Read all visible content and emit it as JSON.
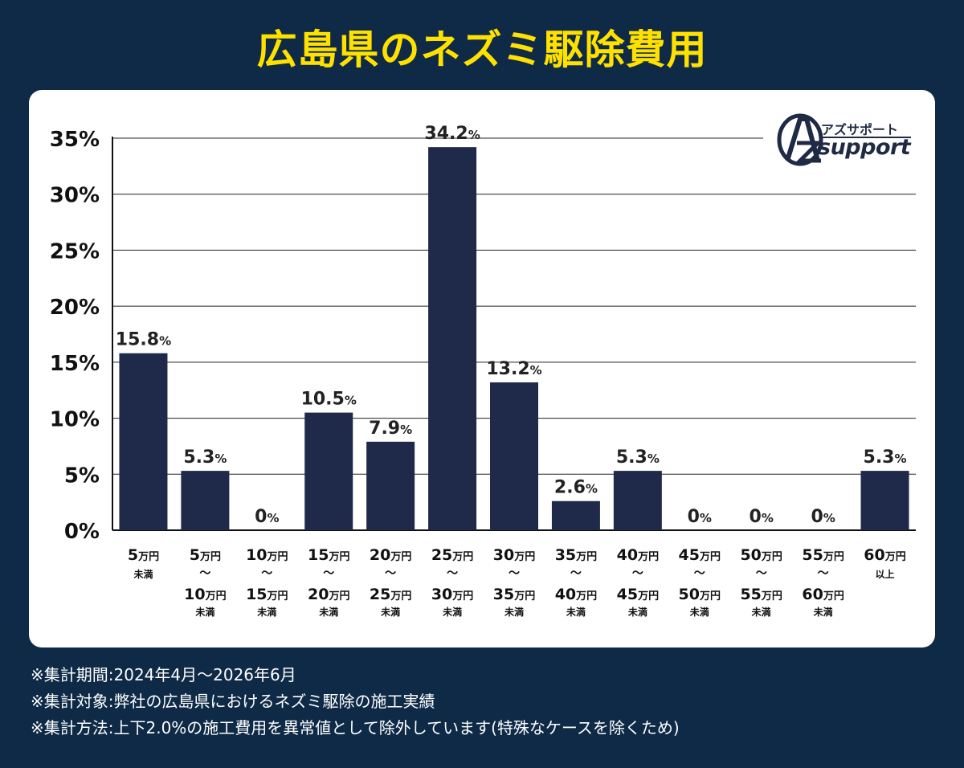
{
  "title": "広島県のネズミ駆除費用",
  "logo": {
    "kana": "アズサポート",
    "word": "support"
  },
  "notes": [
    "※集計期間:2024年4月〜2026年6月",
    "※集計対象:弊社の広島県におけるネズミ駆除の施工実績",
    "※集計方法:上下2.0%の施工費用を異常値として除外しています(特殊なケースを除くため)"
  ],
  "colors": {
    "background": "#0e2a47",
    "title": "#ffe100",
    "bar": "#1f2a4a",
    "grid": "#222222"
  },
  "chart_data": {
    "type": "bar",
    "title": "広島県のネズミ駆除費用",
    "xlabel": "",
    "ylabel": "",
    "ylim": [
      0,
      35
    ],
    "yticks": [
      "0%",
      "5%",
      "10%",
      "15%",
      "20%",
      "25%",
      "30%",
      "35%"
    ],
    "grid": true,
    "unit": "万円",
    "categories": [
      {
        "top": "5",
        "mid": "",
        "bottom": "",
        "suffix": "未満"
      },
      {
        "top": "5",
        "mid": "〜",
        "bottom": "10",
        "suffix": "未満"
      },
      {
        "top": "10",
        "mid": "〜",
        "bottom": "15",
        "suffix": "未満"
      },
      {
        "top": "15",
        "mid": "〜",
        "bottom": "20",
        "suffix": "未満"
      },
      {
        "top": "20",
        "mid": "〜",
        "bottom": "25",
        "suffix": "未満"
      },
      {
        "top": "25",
        "mid": "〜",
        "bottom": "30",
        "suffix": "未満"
      },
      {
        "top": "30",
        "mid": "〜",
        "bottom": "35",
        "suffix": "未満"
      },
      {
        "top": "35",
        "mid": "〜",
        "bottom": "40",
        "suffix": "未満"
      },
      {
        "top": "40",
        "mid": "〜",
        "bottom": "45",
        "suffix": "未満"
      },
      {
        "top": "45",
        "mid": "〜",
        "bottom": "50",
        "suffix": "未満"
      },
      {
        "top": "50",
        "mid": "〜",
        "bottom": "55",
        "suffix": "未満"
      },
      {
        "top": "55",
        "mid": "〜",
        "bottom": "60",
        "suffix": "未満"
      },
      {
        "top": "60",
        "mid": "",
        "bottom": "",
        "suffix": "以上"
      }
    ],
    "values": [
      15.8,
      5.3,
      0,
      10.5,
      7.9,
      34.2,
      13.2,
      2.6,
      5.3,
      0,
      0,
      0,
      5.3
    ],
    "value_labels": [
      "15.8",
      "5.3",
      "0",
      "10.5",
      "7.9",
      "34.2",
      "13.2",
      "2.6",
      "5.3",
      "0",
      "0",
      "0",
      "5.3"
    ],
    "value_unit": "%"
  }
}
